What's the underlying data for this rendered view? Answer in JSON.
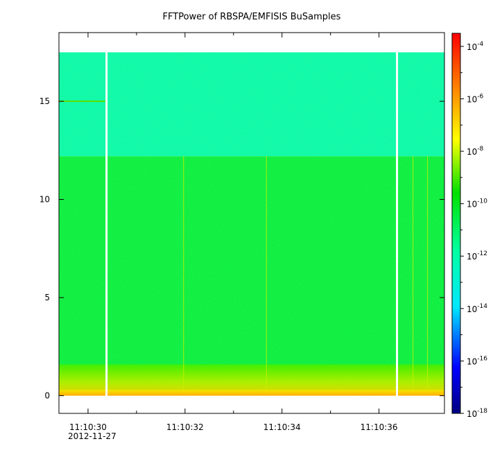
{
  "chart_data": {
    "type": "heatmap",
    "title": "FFTPower of RBSPA/EMFISIS  BuSamples",
    "xlabel": "",
    "ylabel": "",
    "x_ticks": [
      {
        "label": "11:10:30",
        "t": 30
      },
      {
        "label": "11:10:32",
        "t": 32
      },
      {
        "label": "11:10:34",
        "t": 34
      },
      {
        "label": "11:10:36",
        "t": 36
      }
    ],
    "x_minor_ticks": [
      31,
      33,
      35
    ],
    "x_date_label": "2012-11-27",
    "xlim": [
      29.4,
      37.35
    ],
    "y_ticks": [
      0,
      5,
      10,
      15
    ],
    "ylim": [
      -0.9,
      18.5
    ],
    "data_frequency_max": 17.5,
    "data_gaps": [
      {
        "start": 30.36,
        "end": 30.4
      },
      {
        "start": 36.35,
        "end": 36.39
      }
    ],
    "colorbar": {
      "scale": "log",
      "range": [
        "1e-18",
        "1e-3.5"
      ],
      "ticks": [
        {
          "base": "10",
          "exp": "-4"
        },
        {
          "base": "10",
          "exp": "-6"
        },
        {
          "base": "10",
          "exp": "-8"
        },
        {
          "base": "10",
          "exp": "-10"
        },
        {
          "base": "10",
          "exp": "-12"
        },
        {
          "base": "10",
          "exp": "-14"
        },
        {
          "base": "10",
          "exp": "-16"
        },
        {
          "base": "10",
          "exp": "-18"
        }
      ],
      "colormap": "rainbow"
    },
    "power_profile": [
      {
        "freq_range": [
          12.2,
          17.5
        ],
        "log_power": -12.3
      },
      {
        "freq_range": [
          1.5,
          12.2
        ],
        "log_power": -10.6
      },
      {
        "freq_range": [
          0.3,
          1.5
        ],
        "log_power": -9.3
      },
      {
        "freq_range": [
          0,
          0.3
        ],
        "log_power": -7.2
      }
    ],
    "features": [
      {
        "type": "narrowband line",
        "freq": 15.0,
        "t_range": [
          29.4,
          30.36
        ]
      },
      {
        "type": "vertical streak",
        "t": 31.97
      },
      {
        "type": "vertical streak",
        "t": 33.68
      },
      {
        "type": "vertical streak",
        "t": 36.7
      },
      {
        "type": "vertical streak",
        "t": 37.0
      }
    ]
  }
}
